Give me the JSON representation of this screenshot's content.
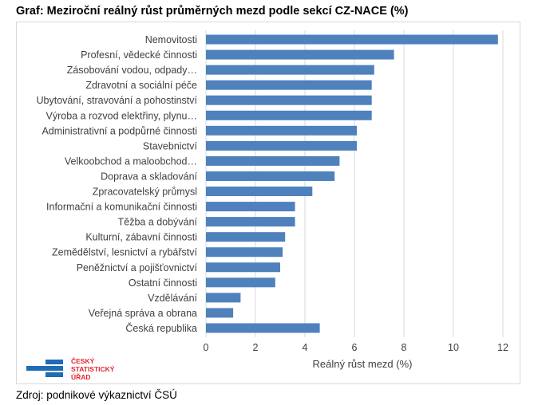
{
  "title": "Graf: Meziroční reálný růst průměrných mezd podle sekcí CZ-NACE (%)",
  "source": "Zdroj: podnikové výkaznictví ČSÚ",
  "logo": {
    "lines": [
      "ČESKÝ",
      "STATISTICKÝ",
      "ÚŘAD"
    ],
    "color_text": "#e3262e",
    "color_mark": "#1f6cb3"
  },
  "chart_data": {
    "type": "bar",
    "orientation": "horizontal",
    "categories": [
      "Nemovitosti",
      "Profesní, vědecké činnosti",
      "Zásobování vodou, odpady…",
      "Zdravotní a sociální péče",
      "Ubytování, stravování a pohostinství",
      "Výroba a rozvod elektřiny, plynu…",
      "Administrativní a podpůrné činnosti",
      "Stavebnictví",
      "Velkoobchod a maloobchod…",
      "Doprava a skladování",
      "Zpracovatelský průmysl",
      "Informační a komunikační činnosti",
      "Těžba a dobývání",
      "Kulturní, zábavní činnosti",
      "Zemědělství, lesnictví a rybářství",
      "Peněžnictví a pojišťovnictví",
      "Ostatní činnosti",
      "Vzdělávání",
      "Veřejná správa a obrana",
      "Česká republika"
    ],
    "values": [
      11.8,
      7.6,
      6.8,
      6.7,
      6.7,
      6.7,
      6.1,
      6.1,
      5.4,
      5.2,
      4.3,
      3.6,
      3.6,
      3.2,
      3.1,
      3.0,
      2.8,
      1.4,
      1.1,
      4.6
    ],
    "xlabel": "Reálný růst mezd (%)",
    "ylabel": "",
    "xlim": [
      0,
      12
    ],
    "xticks": [
      "0",
      "2",
      "4",
      "6",
      "8",
      "10",
      "12"
    ],
    "grid": true,
    "bar_color": "#4f81bd"
  }
}
